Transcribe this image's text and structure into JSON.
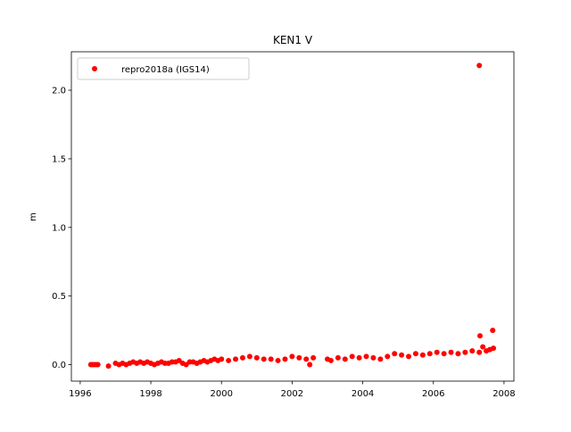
{
  "chart_data": {
    "type": "scatter",
    "title": "KEN1 V",
    "y_label": "m",
    "legend": "upper left",
    "xlim": [
      1995.75,
      2008.28
    ],
    "xticks": [
      1996,
      1998,
      2000,
      2002,
      2004,
      2006,
      2008
    ],
    "ylim": [
      -0.12,
      2.28
    ],
    "yticks": [
      {
        "value": 0,
        "label": "0.0"
      },
      0.5,
      {
        "value": 1,
        "label": "1.0"
      },
      1.5,
      {
        "value": 2,
        "label": "2.0"
      }
    ],
    "series": [
      {
        "name": "repro2018a (IGS14)",
        "color": "#ff0000",
        "x": [
          1996.3,
          1996.35,
          1996.4,
          1996.45,
          1996.5,
          1996.8,
          1997.0,
          1997.1,
          1997.2,
          1997.3,
          1997.4,
          1997.5,
          1997.6,
          1997.7,
          1997.8,
          1997.9,
          1998.0,
          1998.1,
          1998.2,
          1998.3,
          1998.4,
          1998.5,
          1998.6,
          1998.7,
          1998.8,
          1998.9,
          1999.0,
          1999.1,
          1999.2,
          1999.3,
          1999.4,
          1999.5,
          1999.6,
          1999.7,
          1999.8,
          1999.9,
          2000.0,
          2000.2,
          2000.4,
          2000.6,
          2000.8,
          2001.0,
          2001.2,
          2001.4,
          2001.6,
          2001.8,
          2002.0,
          2002.2,
          2002.4,
          2002.5,
          2002.6,
          2003.0,
          2003.1,
          2003.3,
          2003.5,
          2003.7,
          2003.9,
          2004.1,
          2004.3,
          2004.5,
          2004.7,
          2004.9,
          2005.1,
          2005.3,
          2005.5,
          2005.7,
          2005.9,
          2006.1,
          2006.3,
          2006.5,
          2006.7,
          2006.9,
          2007.1,
          2007.3,
          2007.3,
          2007.32,
          2007.4,
          2007.5,
          2007.6,
          2007.7,
          2007.68
        ],
        "values": [
          0,
          0,
          0,
          0,
          0,
          -0.01,
          0.01,
          0,
          0.01,
          0,
          0.01,
          0.02,
          0.01,
          0.02,
          0.01,
          0.02,
          0.01,
          0,
          0.01,
          0.02,
          0.01,
          0.01,
          0.02,
          0.02,
          0.03,
          0.01,
          0,
          0.02,
          0.02,
          0.01,
          0.02,
          0.03,
          0.02,
          0.03,
          0.04,
          0.03,
          0.04,
          0.03,
          0.04,
          0.05,
          0.06,
          0.05,
          0.04,
          0.04,
          0.03,
          0.04,
          0.06,
          0.05,
          0.04,
          0,
          0.05,
          0.04,
          0.03,
          0.05,
          0.04,
          0.06,
          0.05,
          0.06,
          0.05,
          0.04,
          0.06,
          0.08,
          0.07,
          0.06,
          0.08,
          0.07,
          0.08,
          0.09,
          0.08,
          0.09,
          0.08,
          0.09,
          0.1,
          0.09,
          2.18,
          0.21,
          0.13,
          0.1,
          0.11,
          0.12,
          0.25
        ]
      }
    ]
  }
}
